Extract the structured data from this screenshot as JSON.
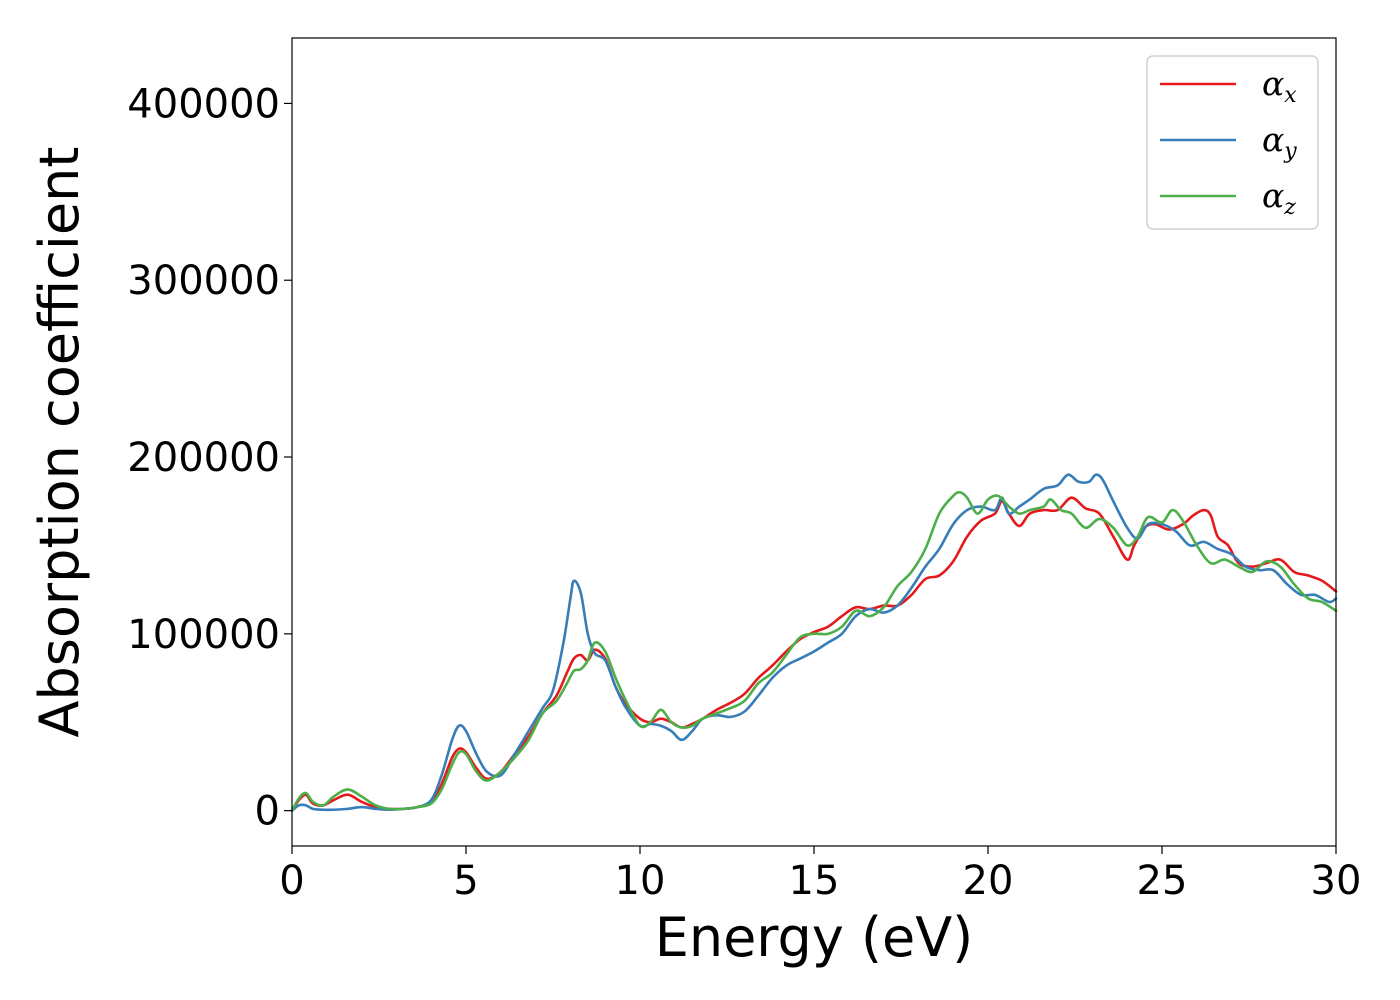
{
  "chart_data": {
    "type": "line",
    "title": "",
    "xlabel": "Energy (eV)",
    "ylabel": "Absorption coefficient",
    "xlim": [
      0,
      30
    ],
    "ylim": [
      -20000,
      437000
    ],
    "xticks": [
      0,
      5,
      10,
      15,
      20,
      25,
      30
    ],
    "xtick_labels": [
      "0",
      "5",
      "10",
      "15",
      "20",
      "25",
      "30"
    ],
    "yticks": [
      0,
      100000,
      200000,
      300000,
      400000
    ],
    "ytick_labels": [
      "0",
      "100000",
      "200000",
      "300000",
      "400000"
    ],
    "grid": false,
    "legend": "top-right",
    "series": [
      {
        "name": "α",
        "subscript": "x",
        "color": "#e41a1c",
        "x": [
          0,
          0.2,
          0.4,
          0.6,
          0.9,
          1.2,
          1.6,
          2.0,
          2.4,
          2.8,
          3.2,
          3.6,
          4.0,
          4.3,
          4.6,
          4.8,
          5.0,
          5.3,
          5.6,
          6.0,
          6.4,
          6.8,
          7.2,
          7.6,
          7.9,
          8.1,
          8.3,
          8.5,
          8.7,
          9.0,
          9.3,
          9.6,
          10.0,
          10.3,
          10.6,
          10.9,
          11.2,
          11.5,
          11.8,
          12.2,
          12.6,
          13.0,
          13.4,
          13.8,
          14.2,
          14.6,
          15.0,
          15.4,
          15.8,
          16.2,
          16.6,
          17.0,
          17.4,
          17.8,
          18.2,
          18.6,
          19.0,
          19.4,
          19.8,
          20.2,
          20.4,
          20.6,
          20.9,
          21.2,
          21.6,
          22.0,
          22.4,
          22.8,
          23.2,
          23.6,
          24.0,
          24.2,
          24.5,
          24.8,
          25.2,
          25.6,
          25.9,
          26.2,
          26.4,
          26.6,
          26.9,
          27.2,
          27.6,
          28.0,
          28.4,
          28.8,
          29.2,
          29.6,
          30.0
        ],
        "values": [
          0,
          6000,
          9000,
          4000,
          3000,
          6000,
          9000,
          5000,
          2000,
          1000,
          1000,
          2000,
          5000,
          15000,
          30000,
          35000,
          33000,
          24000,
          18000,
          22000,
          32000,
          42000,
          55000,
          65000,
          78000,
          86000,
          88000,
          85000,
          91000,
          86000,
          70000,
          60000,
          52000,
          50000,
          52000,
          50000,
          47000,
          49000,
          52000,
          57000,
          61000,
          66000,
          75000,
          82000,
          90000,
          97000,
          101000,
          104000,
          110000,
          115000,
          114000,
          116000,
          116000,
          122000,
          131000,
          133000,
          141000,
          155000,
          164000,
          168000,
          175000,
          168000,
          161000,
          168000,
          170000,
          170000,
          177000,
          171000,
          168000,
          155000,
          142000,
          150000,
          160000,
          162000,
          159000,
          162000,
          167000,
          170000,
          167000,
          155000,
          150000,
          140000,
          138000,
          140000,
          142000,
          135000,
          133000,
          130000,
          124000
        ]
      },
      {
        "name": "α",
        "subscript": "y",
        "color": "#377eb8",
        "x": [
          0,
          0.2,
          0.4,
          0.6,
          0.9,
          1.2,
          1.6,
          2.0,
          2.4,
          2.8,
          3.2,
          3.6,
          4.0,
          4.3,
          4.6,
          4.8,
          5.0,
          5.3,
          5.6,
          6.0,
          6.4,
          6.8,
          7.2,
          7.5,
          7.8,
          8.0,
          8.1,
          8.3,
          8.5,
          8.7,
          9.0,
          9.3,
          9.6,
          10.0,
          10.3,
          10.6,
          10.9,
          11.2,
          11.5,
          11.8,
          12.2,
          12.6,
          13.0,
          13.4,
          13.8,
          14.2,
          14.6,
          15.0,
          15.4,
          15.8,
          16.2,
          16.6,
          17.0,
          17.4,
          17.8,
          18.2,
          18.6,
          19.0,
          19.4,
          19.8,
          20.2,
          20.4,
          20.6,
          20.9,
          21.2,
          21.6,
          22.0,
          22.3,
          22.6,
          22.9,
          23.1,
          23.3,
          23.6,
          24.0,
          24.3,
          24.6,
          25.0,
          25.4,
          25.8,
          26.2,
          26.6,
          27.0,
          27.4,
          27.8,
          28.2,
          28.6,
          29.0,
          29.4,
          29.8,
          30.0
        ],
        "values": [
          0,
          3000,
          3000,
          1000,
          500,
          500,
          1000,
          2000,
          1000,
          500,
          1000,
          2000,
          6000,
          20000,
          40000,
          48000,
          45000,
          32000,
          22000,
          20000,
          32000,
          45000,
          58000,
          68000,
          95000,
          120000,
          130000,
          123000,
          100000,
          89000,
          85000,
          70000,
          58000,
          48000,
          49000,
          48000,
          45000,
          40000,
          45000,
          52000,
          54000,
          53000,
          56000,
          65000,
          75000,
          82000,
          86000,
          90000,
          95000,
          100000,
          110000,
          114000,
          112000,
          116000,
          126000,
          138000,
          148000,
          162000,
          170000,
          172000,
          170000,
          177000,
          168000,
          172000,
          176000,
          182000,
          184000,
          190000,
          186000,
          186000,
          190000,
          187000,
          175000,
          160000,
          154000,
          162000,
          162000,
          158000,
          150000,
          152000,
          148000,
          145000,
          138000,
          136000,
          136000,
          128000,
          122000,
          122000,
          118000,
          120000
        ]
      },
      {
        "name": "α",
        "subscript": "z",
        "color": "#4daf4a",
        "x": [
          0,
          0.2,
          0.4,
          0.6,
          0.9,
          1.2,
          1.6,
          2.0,
          2.4,
          2.8,
          3.2,
          3.6,
          4.0,
          4.3,
          4.6,
          4.8,
          5.0,
          5.3,
          5.6,
          6.0,
          6.4,
          6.8,
          7.2,
          7.6,
          7.9,
          8.1,
          8.3,
          8.5,
          8.7,
          9.0,
          9.3,
          9.6,
          10.0,
          10.3,
          10.6,
          10.9,
          11.2,
          11.5,
          11.8,
          12.2,
          12.6,
          13.0,
          13.4,
          13.8,
          14.2,
          14.6,
          15.0,
          15.4,
          15.8,
          16.2,
          16.6,
          17.0,
          17.4,
          17.8,
          18.2,
          18.6,
          19.0,
          19.2,
          19.4,
          19.7,
          20.0,
          20.3,
          20.6,
          20.9,
          21.2,
          21.6,
          21.8,
          22.1,
          22.4,
          22.8,
          23.2,
          23.6,
          24.0,
          24.3,
          24.6,
          25.0,
          25.3,
          25.6,
          26.0,
          26.4,
          26.8,
          27.2,
          27.6,
          28.0,
          28.4,
          28.8,
          29.2,
          29.6,
          30.0
        ],
        "values": [
          0,
          7000,
          10000,
          5000,
          3000,
          8000,
          12000,
          8000,
          3000,
          1000,
          1000,
          2000,
          4000,
          12000,
          26000,
          33000,
          32000,
          22000,
          17000,
          22000,
          30000,
          40000,
          55000,
          62000,
          72000,
          79000,
          80000,
          85000,
          95000,
          90000,
          75000,
          62000,
          48000,
          50000,
          57000,
          50000,
          47000,
          48000,
          52000,
          55000,
          58000,
          62000,
          72000,
          78000,
          88000,
          98000,
          100000,
          100000,
          104000,
          113000,
          110000,
          115000,
          127000,
          135000,
          148000,
          168000,
          178000,
          180000,
          177000,
          168000,
          176000,
          178000,
          172000,
          168000,
          170000,
          172000,
          176000,
          170000,
          168000,
          160000,
          165000,
          160000,
          150000,
          155000,
          166000,
          163000,
          170000,
          164000,
          150000,
          140000,
          142000,
          138000,
          135000,
          141000,
          138000,
          128000,
          120000,
          118000,
          113000
        ]
      }
    ]
  }
}
